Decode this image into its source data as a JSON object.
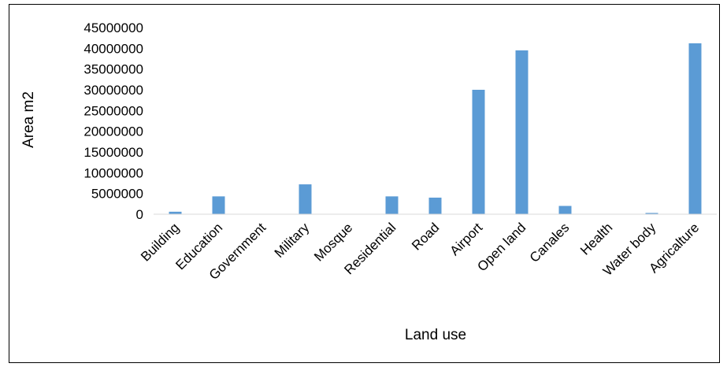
{
  "chart_data": {
    "type": "bar",
    "title": "",
    "xlabel": "Land use",
    "ylabel": "Area m2",
    "categories": [
      "Building",
      "Education",
      "Government",
      "Military",
      "Mosque",
      "Residential",
      "Road",
      "Airport",
      "Open land",
      "Canales",
      "Health",
      "Water body",
      "Agricalture"
    ],
    "values": [
      600000,
      4300000,
      0,
      7200000,
      0,
      4300000,
      4000000,
      30000000,
      39500000,
      2000000,
      0,
      300000,
      41200000
    ],
    "ylim": [
      0,
      45000000
    ],
    "yticks": [
      "0",
      "5000000",
      "10000000",
      "15000000",
      "20000000",
      "25000000",
      "30000000",
      "35000000",
      "40000000",
      "45000000"
    ],
    "grid": false,
    "legend": "none",
    "bar_color": "#5B9BD5"
  }
}
